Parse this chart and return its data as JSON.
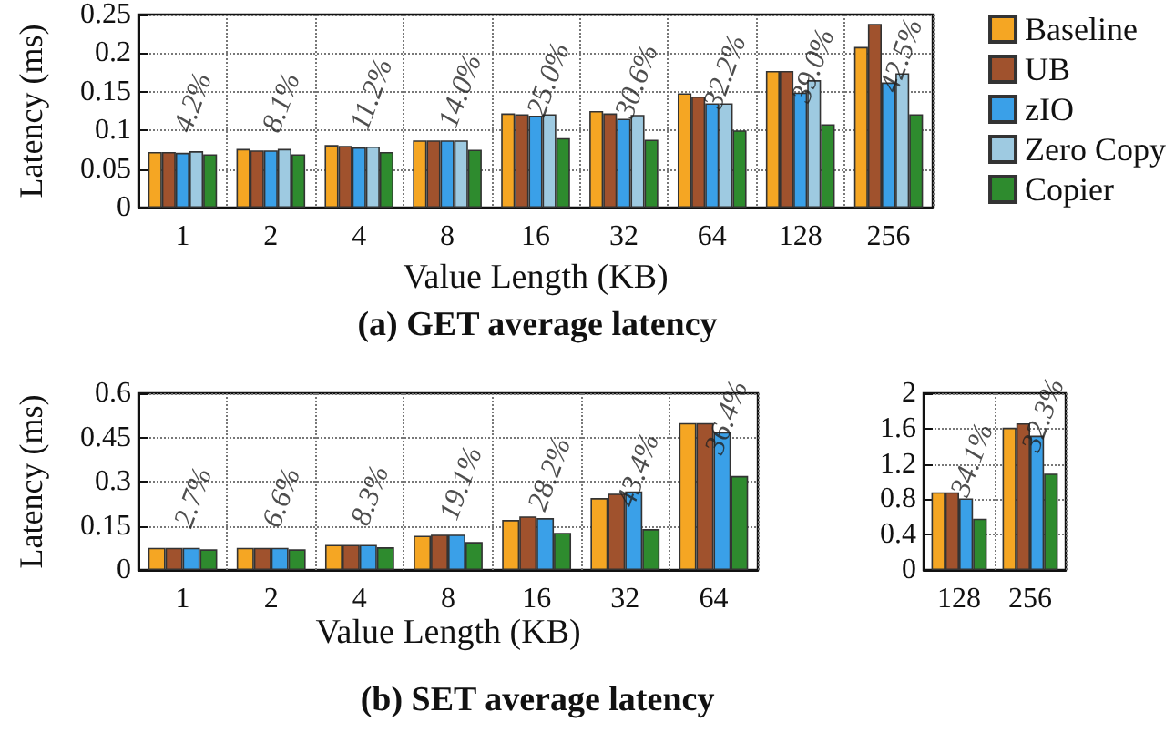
{
  "chart_data": [
    {
      "type": "bar",
      "title": "(a) GET average latency",
      "xlabel": "Value Length (KB)",
      "ylabel": "Latency (ms)",
      "categories": [
        "1",
        "2",
        "4",
        "8",
        "16",
        "32",
        "64",
        "128",
        "256"
      ],
      "ylim": [
        0,
        0.25
      ],
      "yticks": [
        0,
        0.05,
        0.1,
        0.15,
        0.2,
        0.25
      ],
      "grid": true,
      "legend": "right",
      "series": [
        {
          "name": "Baseline",
          "color": "#f5a623",
          "values": [
            0.072,
            0.076,
            0.081,
            0.087,
            0.122,
            0.125,
            0.148,
            0.177,
            0.208
          ]
        },
        {
          "name": "UB",
          "color": "#a0522d",
          "values": [
            0.072,
            0.074,
            0.08,
            0.087,
            0.121,
            0.122,
            0.144,
            0.177,
            0.238
          ]
        },
        {
          "name": "zIO",
          "color": "#3aa0e8",
          "values": [
            0.071,
            0.074,
            0.078,
            0.087,
            0.119,
            0.115,
            0.135,
            0.149,
            0.162
          ]
        },
        {
          "name": "Zero Copy",
          "color": "#9ecae1",
          "values": [
            0.073,
            0.076,
            0.079,
            0.087,
            0.121,
            0.12,
            0.135,
            0.165,
            0.174
          ]
        },
        {
          "name": "Copier",
          "color": "#2e8b2e",
          "values": [
            0.069,
            0.069,
            0.072,
            0.075,
            0.09,
            0.088,
            0.1,
            0.108,
            0.121
          ]
        }
      ],
      "annotations": [
        {
          "text": "4.2%",
          "x": "1",
          "y": 0.069
        },
        {
          "text": "8.1%",
          "x": "2",
          "y": 0.069
        },
        {
          "text": "11.2%",
          "x": "4",
          "y": 0.072
        },
        {
          "text": "14.0%",
          "x": "8",
          "y": 0.075
        },
        {
          "text": "25.0%",
          "x": "16",
          "y": 0.09
        },
        {
          "text": "30.6%",
          "x": "32",
          "y": 0.088
        },
        {
          "text": "32.2%",
          "x": "64",
          "y": 0.1
        },
        {
          "text": "39.0%",
          "x": "128",
          "y": 0.108
        },
        {
          "text": "42.5%",
          "x": "256",
          "y": 0.121
        }
      ]
    },
    {
      "type": "bar",
      "title": "(b) SET average latency",
      "xlabel": "Value Length (KB)",
      "ylabel": "Latency (ms)",
      "categories": [
        "1",
        "2",
        "4",
        "8",
        "16",
        "32",
        "64"
      ],
      "ylim": [
        0,
        0.6
      ],
      "yticks": [
        0,
        0.15,
        0.3,
        0.45,
        0.6
      ],
      "grid": true,
      "series": [
        {
          "color": "#f5a623",
          "values": [
            0.075,
            0.075,
            0.085,
            0.116,
            0.17,
            0.244,
            0.499
          ]
        },
        {
          "color": "#a0522d",
          "values": [
            0.075,
            0.075,
            0.085,
            0.12,
            0.182,
            0.259,
            0.499
          ]
        },
        {
          "color": "#3aa0e8",
          "values": [
            0.075,
            0.075,
            0.085,
            0.12,
            0.176,
            0.267,
            0.468
          ]
        },
        {
          "color": "#2e8b2e",
          "values": [
            0.07,
            0.07,
            0.077,
            0.095,
            0.126,
            0.139,
            0.319
          ]
        }
      ],
      "annotations": [
        {
          "text": "2.7%",
          "x": "1",
          "y": 0.07
        },
        {
          "text": "6.6%",
          "x": "2",
          "y": 0.07
        },
        {
          "text": "8.3%",
          "x": "4",
          "y": 0.077
        },
        {
          "text": "19.1%",
          "x": "8",
          "y": 0.095
        },
        {
          "text": "28.2%",
          "x": "16",
          "y": 0.126
        },
        {
          "text": "43.4%",
          "x": "32",
          "y": 0.139
        },
        {
          "text": "36.4%",
          "x": "64",
          "y": 0.319
        }
      ]
    },
    {
      "type": "bar",
      "categories": [
        "128",
        "256"
      ],
      "ylim": [
        0,
        2
      ],
      "yticks": [
        0,
        0.4,
        0.8,
        1.2,
        1.6,
        2
      ],
      "grid": true,
      "series": [
        {
          "color": "#f5a623",
          "values": [
            0.88,
            1.61
          ]
        },
        {
          "color": "#a0522d",
          "values": [
            0.88,
            1.66
          ]
        },
        {
          "color": "#3aa0e8",
          "values": [
            0.81,
            1.52
          ]
        },
        {
          "color": "#2e8b2e",
          "values": [
            0.58,
            1.09
          ]
        }
      ],
      "annotations": [
        {
          "text": "34.1%",
          "x": "128",
          "y": 0.58
        },
        {
          "text": "32.3%",
          "x": "256",
          "y": 1.09
        }
      ]
    }
  ]
}
